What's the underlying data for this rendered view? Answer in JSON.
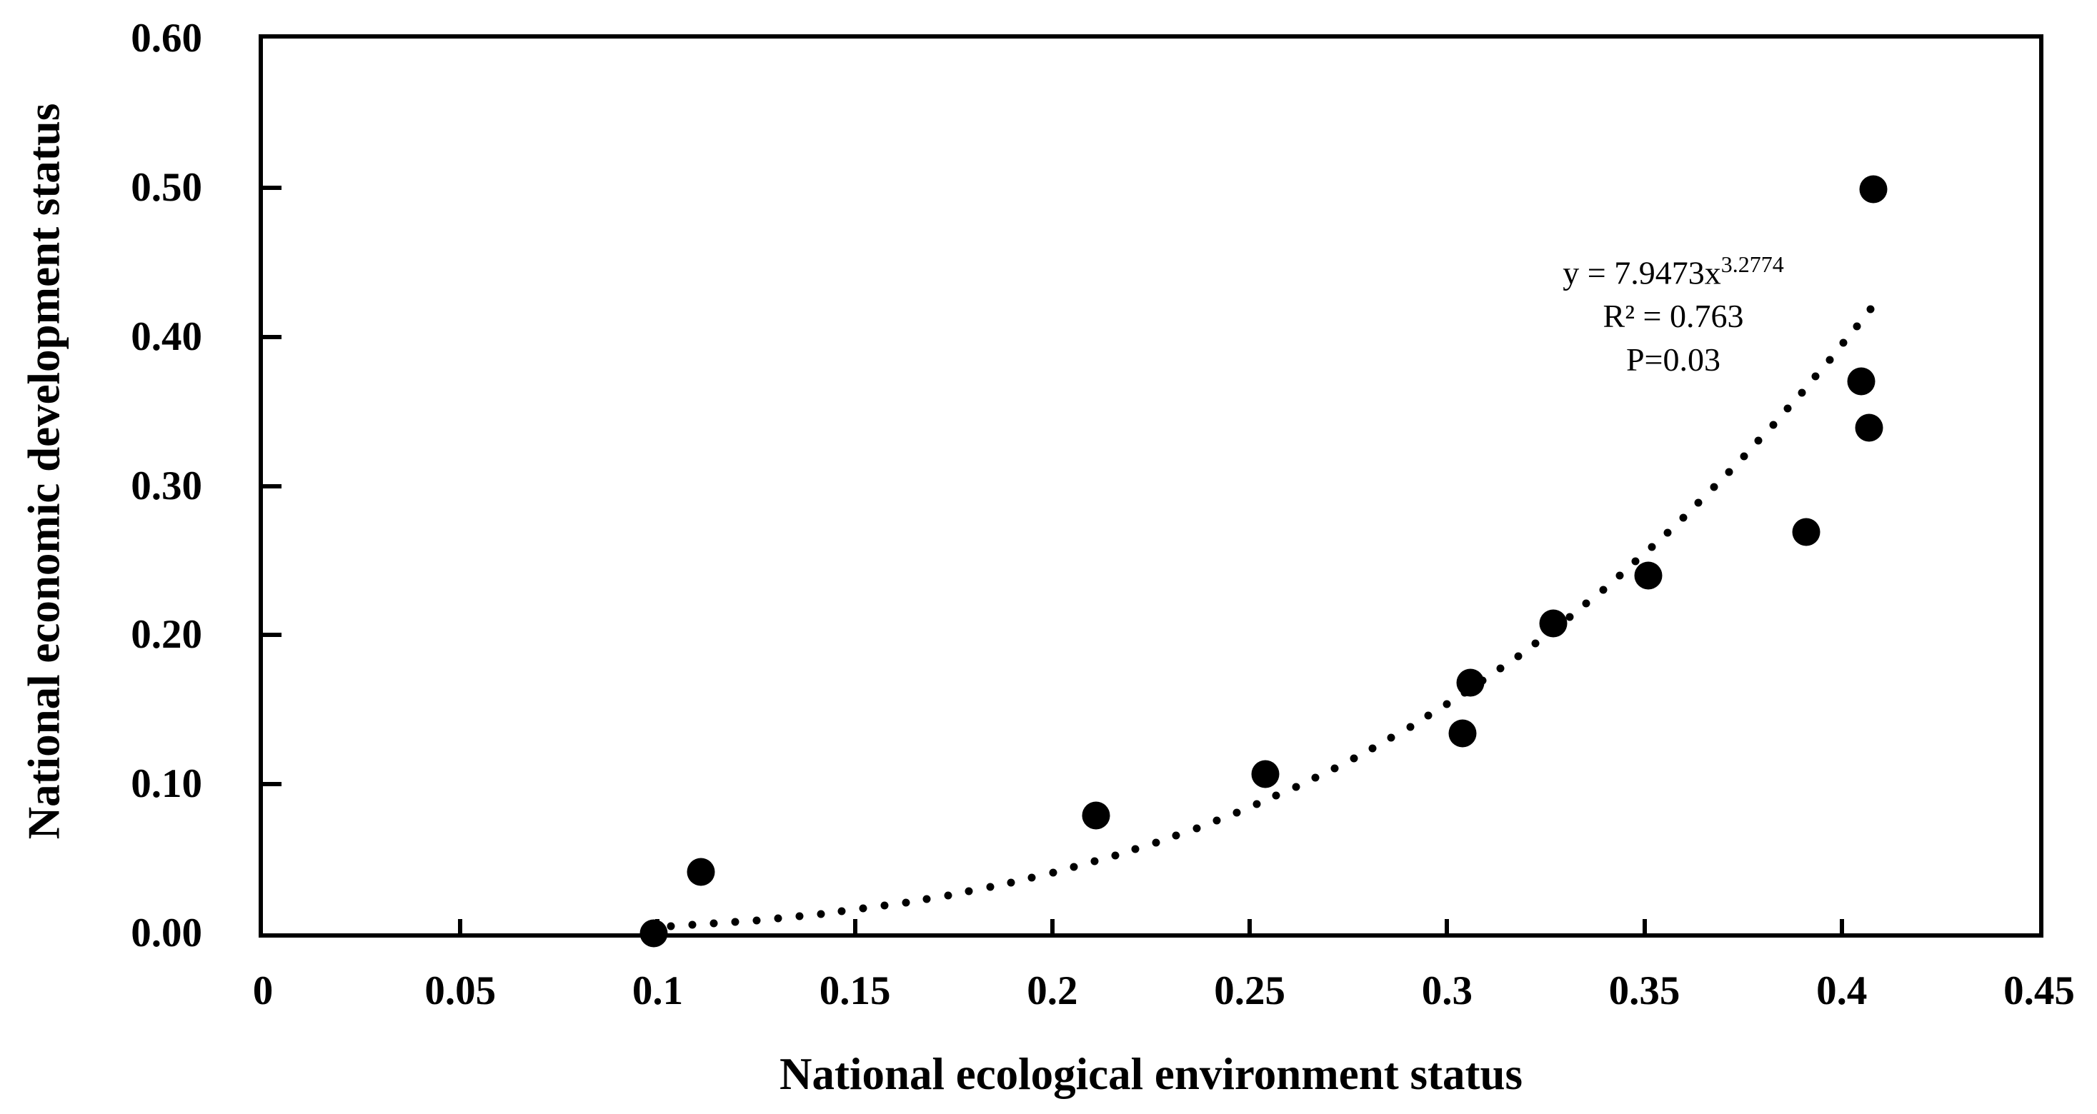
{
  "chart_data": {
    "type": "scatter",
    "title": "",
    "xlabel": "National ecological environment status",
    "ylabel": "National economic development status",
    "xlim": [
      0,
      0.45
    ],
    "ylim": [
      0,
      0.6
    ],
    "grid": false,
    "legend": "none",
    "x_ticks": [
      {
        "value": 0,
        "label": "0"
      },
      {
        "value": 0.05,
        "label": "0.05"
      },
      {
        "value": 0.1,
        "label": "0.1"
      },
      {
        "value": 0.15,
        "label": "0.15"
      },
      {
        "value": 0.2,
        "label": "0.2"
      },
      {
        "value": 0.25,
        "label": "0.25"
      },
      {
        "value": 0.3,
        "label": "0.3"
      },
      {
        "value": 0.35,
        "label": "0.35"
      },
      {
        "value": 0.4,
        "label": "0.4"
      },
      {
        "value": 0.45,
        "label": "0.45"
      }
    ],
    "y_ticks": [
      {
        "value": 0.0,
        "label": "0.00"
      },
      {
        "value": 0.1,
        "label": "0.10"
      },
      {
        "value": 0.2,
        "label": "0.20"
      },
      {
        "value": 0.3,
        "label": "0.30"
      },
      {
        "value": 0.4,
        "label": "0.40"
      },
      {
        "value": 0.5,
        "label": "0.50"
      },
      {
        "value": 0.6,
        "label": "0.60"
      }
    ],
    "points": [
      {
        "x": 0.099,
        "y": 0.0
      },
      {
        "x": 0.111,
        "y": 0.041
      },
      {
        "x": 0.211,
        "y": 0.079
      },
      {
        "x": 0.254,
        "y": 0.107
      },
      {
        "x": 0.304,
        "y": 0.134
      },
      {
        "x": 0.306,
        "y": 0.168
      },
      {
        "x": 0.327,
        "y": 0.208
      },
      {
        "x": 0.351,
        "y": 0.24
      },
      {
        "x": 0.391,
        "y": 0.269
      },
      {
        "x": 0.405,
        "y": 0.37
      },
      {
        "x": 0.407,
        "y": 0.339
      },
      {
        "x": 0.408,
        "y": 0.499
      }
    ],
    "trendline": {
      "type": "power",
      "coefficient": 7.9473,
      "exponent": 3.2774,
      "r_squared": 0.763,
      "p_value": 0.03,
      "x_start": 0.098,
      "x_end": 0.408,
      "style": "dotted"
    },
    "annotation": {
      "equation_base": "y = 7.9473x",
      "equation_exponent": "3.2774",
      "r_squared_text": "R² = 0.763",
      "p_value_text": "P=0.03"
    },
    "colors": {
      "points": "#000000",
      "trendline": "#000000",
      "text": "#000000",
      "background": "#ffffff"
    }
  }
}
